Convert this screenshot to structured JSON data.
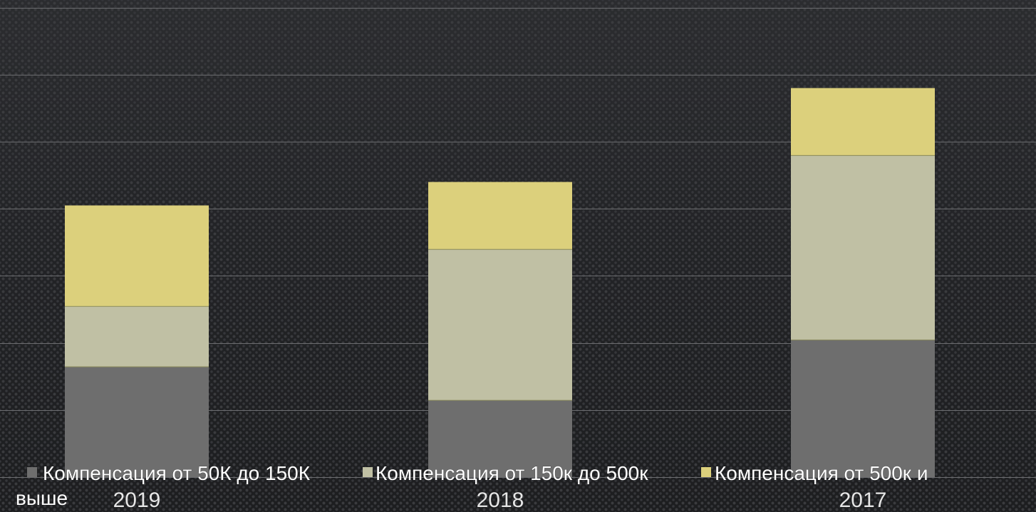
{
  "chart_data": {
    "type": "bar",
    "stacked": true,
    "categories": [
      "2019",
      "2018",
      "2017"
    ],
    "series": [
      {
        "name": "Компенсация от 50К до 150К",
        "color": "#6e6e6e",
        "values": [
          1.65,
          1.15,
          2.05
        ]
      },
      {
        "name": "Компенсация от 150к до 500к",
        "color": "#c0c0a4",
        "values": [
          0.9,
          2.25,
          2.75
        ]
      },
      {
        "name": "Компенсация от 500к и выше",
        "color": "#dcd07c",
        "values": [
          1.5,
          1.0,
          1.0
        ]
      }
    ],
    "y_gridlines": [
      0,
      1,
      2,
      3,
      4,
      5,
      6,
      7
    ],
    "ylim": [
      0,
      7
    ],
    "legend_position": "bottom",
    "grid": true
  }
}
